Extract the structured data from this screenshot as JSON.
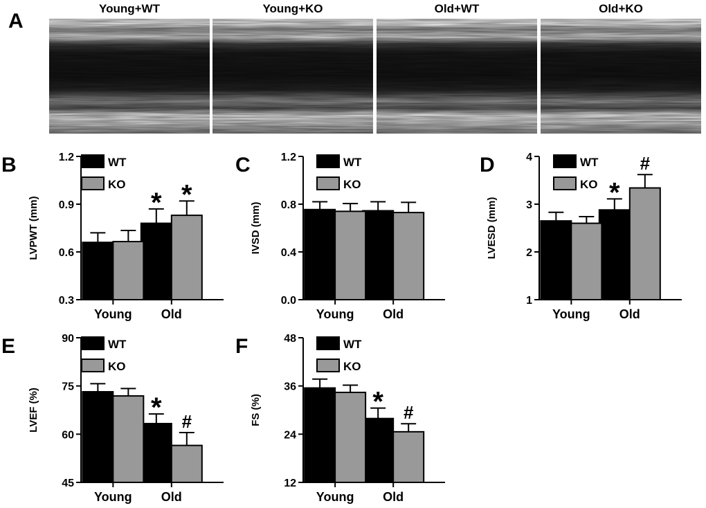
{
  "panel_a": {
    "letter": "A",
    "titles": [
      "Young+WT",
      "Young+KO",
      "Old+WT",
      "Old+KO"
    ]
  },
  "colors": {
    "wt": "#000000",
    "ko": "#999999"
  },
  "legend": {
    "wt": "WT",
    "ko": "KO"
  },
  "chart_data": [
    {
      "letter": "B",
      "type": "bar",
      "ylabel": "LVPWT (mm)",
      "categories": [
        "Young",
        "Old"
      ],
      "ylim": [
        0.3,
        1.2
      ],
      "yticks": [
        "0.3",
        "0.6",
        "0.9",
        "1.2"
      ],
      "series": [
        {
          "name": "WT",
          "values": [
            0.66,
            0.78
          ],
          "errors": [
            0.06,
            0.09
          ]
        },
        {
          "name": "KO",
          "values": [
            0.665,
            0.83
          ],
          "errors": [
            0.07,
            0.09
          ]
        }
      ],
      "annotations": [
        {
          "group": 1,
          "series": 0,
          "text": "*"
        },
        {
          "group": 1,
          "series": 1,
          "text": "*"
        }
      ]
    },
    {
      "letter": "C",
      "type": "bar",
      "ylabel": "IVSD (mm)",
      "categories": [
        "Young",
        "Old"
      ],
      "ylim": [
        0.0,
        1.2
      ],
      "yticks": [
        "0.0",
        "0.4",
        "0.8",
        "1.2"
      ],
      "series": [
        {
          "name": "WT",
          "values": [
            0.755,
            0.745
          ],
          "errors": [
            0.065,
            0.075
          ]
        },
        {
          "name": "KO",
          "values": [
            0.74,
            0.73
          ],
          "errors": [
            0.065,
            0.085
          ]
        }
      ],
      "annotations": []
    },
    {
      "letter": "D",
      "type": "bar",
      "ylabel": "LVESD (mm)",
      "categories": [
        "Young",
        "Old"
      ],
      "ylim": [
        1,
        4
      ],
      "yticks": [
        "1",
        "2",
        "3",
        "4"
      ],
      "series": [
        {
          "name": "WT",
          "values": [
            2.65,
            2.88
          ],
          "errors": [
            0.18,
            0.23
          ]
        },
        {
          "name": "KO",
          "values": [
            2.6,
            3.34
          ],
          "errors": [
            0.14,
            0.28
          ]
        }
      ],
      "annotations": [
        {
          "group": 1,
          "series": 0,
          "text": "*"
        },
        {
          "group": 1,
          "series": 1,
          "text": "#"
        }
      ]
    },
    {
      "letter": "E",
      "type": "bar",
      "ylabel": "LVEF (%)",
      "categories": [
        "Young",
        "Old"
      ],
      "ylim": [
        45,
        90
      ],
      "yticks": [
        "45",
        "60",
        "75",
        "90"
      ],
      "series": [
        {
          "name": "WT",
          "values": [
            73.2,
            63.3
          ],
          "errors": [
            2.5,
            3.0
          ]
        },
        {
          "name": "KO",
          "values": [
            71.9,
            56.5
          ],
          "errors": [
            2.3,
            4.0
          ]
        }
      ],
      "annotations": [
        {
          "group": 1,
          "series": 0,
          "text": "*"
        },
        {
          "group": 1,
          "series": 1,
          "text": "#"
        }
      ]
    },
    {
      "letter": "F",
      "type": "bar",
      "ylabel": "FS (%)",
      "categories": [
        "Young",
        "Old"
      ],
      "ylim": [
        12,
        48
      ],
      "yticks": [
        "12",
        "24",
        "36",
        "48"
      ],
      "series": [
        {
          "name": "WT",
          "values": [
            35.5,
            27.9
          ],
          "errors": [
            2.2,
            2.6
          ]
        },
        {
          "name": "KO",
          "values": [
            34.4,
            24.6
          ],
          "errors": [
            1.8,
            2.0
          ]
        }
      ],
      "annotations": [
        {
          "group": 1,
          "series": 0,
          "text": "*"
        },
        {
          "group": 1,
          "series": 1,
          "text": "#"
        }
      ]
    }
  ]
}
